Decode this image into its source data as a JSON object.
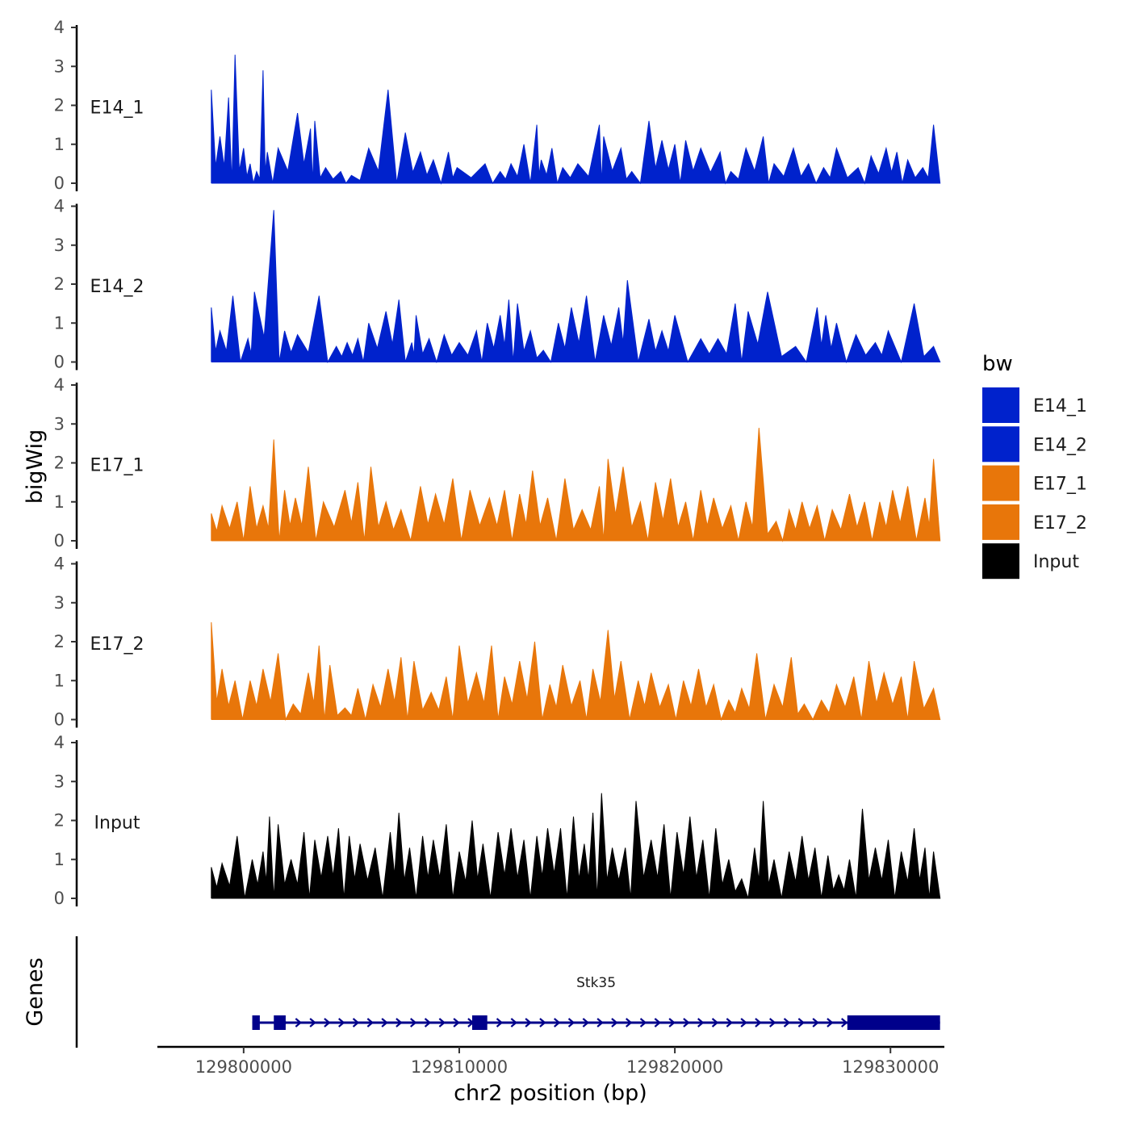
{
  "chart_data": {
    "type": "area",
    "chromosome": "chr2",
    "xlabel": "chr2 position (bp)",
    "ylabel": "bigWig",
    "genes_label": "Genes",
    "xlim": [
      129796000,
      129832500
    ],
    "x_range_data": [
      129798500,
      129832300
    ],
    "x_ticks": [
      129800000,
      129810000,
      129820000,
      129830000
    ],
    "x_tick_labels": [
      "129800000",
      "129810000",
      "129820000",
      "129830000"
    ],
    "ylim": [
      0,
      4
    ],
    "y_ticks": [
      0,
      1,
      2,
      3,
      4
    ],
    "y_tick_labels": [
      "0",
      "1",
      "2",
      "3",
      "4"
    ],
    "legend": {
      "title": "bw",
      "position": "right",
      "items": [
        {
          "label": "E14_1",
          "color": "#0022CC"
        },
        {
          "label": "E14_2",
          "color": "#0022CC"
        },
        {
          "label": "E17_1",
          "color": "#E8760A"
        },
        {
          "label": "E17_2",
          "color": "#E8760A"
        },
        {
          "label": "Input",
          "color": "#000000"
        }
      ]
    },
    "series": [
      {
        "name": "E14_1",
        "color": "#0022CC",
        "peaks": [
          [
            129798500,
            2.4
          ],
          [
            129798900,
            1.2
          ],
          [
            129799300,
            2.2
          ],
          [
            129799600,
            3.3
          ],
          [
            129800000,
            0.9
          ],
          [
            129800300,
            0.5
          ],
          [
            129800600,
            0.3
          ],
          [
            129800900,
            2.9
          ],
          [
            129801100,
            0.8
          ],
          [
            129801600,
            0.9
          ],
          [
            129802500,
            1.8
          ],
          [
            129803100,
            1.4
          ],
          [
            129803300,
            1.6
          ],
          [
            129803800,
            0.4
          ],
          [
            129804500,
            0.3
          ],
          [
            129805000,
            0.2
          ],
          [
            129805800,
            0.9
          ],
          [
            129806700,
            2.4
          ],
          [
            129807500,
            1.3
          ],
          [
            129808200,
            0.8
          ],
          [
            129808800,
            0.6
          ],
          [
            129809500,
            0.8
          ],
          [
            129809900,
            0.4
          ],
          [
            129811200,
            0.5
          ],
          [
            129811900,
            0.3
          ],
          [
            129812400,
            0.5
          ],
          [
            129813000,
            1.0
          ],
          [
            129813600,
            1.5
          ],
          [
            129813800,
            0.6
          ],
          [
            129814300,
            0.9
          ],
          [
            129814800,
            0.4
          ],
          [
            129815500,
            0.5
          ],
          [
            129816500,
            1.5
          ],
          [
            129816700,
            1.2
          ],
          [
            129817500,
            0.9
          ],
          [
            129818000,
            0.3
          ],
          [
            129818800,
            1.6
          ],
          [
            129819400,
            1.1
          ],
          [
            129820000,
            1.0
          ],
          [
            129820500,
            1.1
          ],
          [
            129821200,
            0.9
          ],
          [
            129822100,
            0.8
          ],
          [
            129822600,
            0.3
          ],
          [
            129823300,
            0.9
          ],
          [
            129824100,
            1.2
          ],
          [
            129824600,
            0.5
          ],
          [
            129825500,
            0.9
          ],
          [
            129826200,
            0.5
          ],
          [
            129826900,
            0.4
          ],
          [
            129827500,
            0.9
          ],
          [
            129828500,
            0.4
          ],
          [
            129829100,
            0.7
          ],
          [
            129829800,
            0.9
          ],
          [
            129830300,
            0.8
          ],
          [
            129830800,
            0.6
          ],
          [
            129831500,
            0.4
          ],
          [
            129832000,
            1.5
          ]
        ]
      },
      {
        "name": "E14_2",
        "color": "#0022CC",
        "peaks": [
          [
            129798500,
            1.4
          ],
          [
            129798900,
            0.8
          ],
          [
            129799500,
            1.7
          ],
          [
            129800200,
            0.6
          ],
          [
            129800500,
            1.8
          ],
          [
            129801400,
            3.9
          ],
          [
            129801900,
            0.8
          ],
          [
            129802500,
            0.7
          ],
          [
            129803500,
            1.7
          ],
          [
            129804300,
            0.4
          ],
          [
            129804800,
            0.5
          ],
          [
            129805300,
            0.6
          ],
          [
            129805800,
            1.0
          ],
          [
            129806600,
            1.3
          ],
          [
            129807200,
            1.6
          ],
          [
            129807800,
            0.5
          ],
          [
            129808000,
            1.2
          ],
          [
            129808600,
            0.6
          ],
          [
            129809300,
            0.7
          ],
          [
            129810000,
            0.5
          ],
          [
            129810800,
            0.8
          ],
          [
            129811300,
            1.0
          ],
          [
            129811900,
            1.2
          ],
          [
            129812300,
            1.6
          ],
          [
            129812700,
            1.5
          ],
          [
            129813300,
            0.8
          ],
          [
            129813900,
            0.3
          ],
          [
            129814600,
            1.0
          ],
          [
            129815200,
            1.4
          ],
          [
            129815900,
            1.7
          ],
          [
            129816700,
            1.2
          ],
          [
            129817400,
            1.4
          ],
          [
            129817800,
            2.1
          ],
          [
            129818800,
            1.1
          ],
          [
            129819400,
            0.8
          ],
          [
            129820000,
            1.2
          ],
          [
            129821200,
            0.6
          ],
          [
            129822000,
            0.6
          ],
          [
            129822800,
            1.5
          ],
          [
            129823400,
            1.3
          ],
          [
            129824300,
            1.8
          ],
          [
            129825600,
            0.4
          ],
          [
            129826600,
            1.4
          ],
          [
            129827000,
            1.2
          ],
          [
            129827500,
            1.0
          ],
          [
            129828400,
            0.7
          ],
          [
            129829300,
            0.5
          ],
          [
            129829900,
            0.8
          ],
          [
            129831100,
            1.5
          ],
          [
            129832000,
            0.4
          ]
        ]
      },
      {
        "name": "E17_1",
        "color": "#E8760A",
        "peaks": [
          [
            129798500,
            0.7
          ],
          [
            129799000,
            0.9
          ],
          [
            129799700,
            1.0
          ],
          [
            129800300,
            1.4
          ],
          [
            129800900,
            0.9
          ],
          [
            129801400,
            2.6
          ],
          [
            129801900,
            1.3
          ],
          [
            129802400,
            1.1
          ],
          [
            129803000,
            1.9
          ],
          [
            129803700,
            1.0
          ],
          [
            129804700,
            1.3
          ],
          [
            129805300,
            1.5
          ],
          [
            129805900,
            1.9
          ],
          [
            129806600,
            1.0
          ],
          [
            129807300,
            0.8
          ],
          [
            129808200,
            1.4
          ],
          [
            129808900,
            1.2
          ],
          [
            129809700,
            1.6
          ],
          [
            129810500,
            1.3
          ],
          [
            129811400,
            1.1
          ],
          [
            129812100,
            1.3
          ],
          [
            129812800,
            1.2
          ],
          [
            129813400,
            1.8
          ],
          [
            129814100,
            1.1
          ],
          [
            129814900,
            1.6
          ],
          [
            129815700,
            0.8
          ],
          [
            129816500,
            1.4
          ],
          [
            129816900,
            2.1
          ],
          [
            129817600,
            1.9
          ],
          [
            129818400,
            1.0
          ],
          [
            129819100,
            1.5
          ],
          [
            129819800,
            1.6
          ],
          [
            129820500,
            1.0
          ],
          [
            129821200,
            1.3
          ],
          [
            129821800,
            1.1
          ],
          [
            129822600,
            0.9
          ],
          [
            129823300,
            1.0
          ],
          [
            129823900,
            2.9
          ],
          [
            129824700,
            0.5
          ],
          [
            129825300,
            0.8
          ],
          [
            129825900,
            1.0
          ],
          [
            129826600,
            0.9
          ],
          [
            129827300,
            0.8
          ],
          [
            129828100,
            1.2
          ],
          [
            129828800,
            1.0
          ],
          [
            129829500,
            1.0
          ],
          [
            129830100,
            1.3
          ],
          [
            129830800,
            1.4
          ],
          [
            129831600,
            1.1
          ],
          [
            129832000,
            2.1
          ]
        ]
      },
      {
        "name": "E17_2",
        "color": "#E8760A",
        "peaks": [
          [
            129798500,
            2.5
          ],
          [
            129799000,
            1.3
          ],
          [
            129799600,
            1.0
          ],
          [
            129800300,
            1.0
          ],
          [
            129800900,
            1.3
          ],
          [
            129801600,
            1.7
          ],
          [
            129802300,
            0.4
          ],
          [
            129803000,
            1.2
          ],
          [
            129803500,
            1.9
          ],
          [
            129804000,
            1.4
          ],
          [
            129804700,
            0.3
          ],
          [
            129805300,
            0.8
          ],
          [
            129806000,
            0.9
          ],
          [
            129806700,
            1.3
          ],
          [
            129807300,
            1.6
          ],
          [
            129807900,
            1.5
          ],
          [
            129808700,
            0.7
          ],
          [
            129809400,
            1.1
          ],
          [
            129810000,
            1.9
          ],
          [
            129810800,
            1.2
          ],
          [
            129811500,
            1.9
          ],
          [
            129812100,
            1.1
          ],
          [
            129812800,
            1.5
          ],
          [
            129813500,
            2.0
          ],
          [
            129814200,
            0.9
          ],
          [
            129814800,
            1.4
          ],
          [
            129815600,
            1.0
          ],
          [
            129816200,
            1.3
          ],
          [
            129816900,
            2.3
          ],
          [
            129817500,
            1.5
          ],
          [
            129818300,
            1.0
          ],
          [
            129818900,
            1.2
          ],
          [
            129819700,
            0.9
          ],
          [
            129820400,
            1.0
          ],
          [
            129821100,
            1.3
          ],
          [
            129821800,
            0.9
          ],
          [
            129822500,
            0.5
          ],
          [
            129823100,
            0.8
          ],
          [
            129823800,
            1.7
          ],
          [
            129824600,
            0.9
          ],
          [
            129825400,
            1.6
          ],
          [
            129826000,
            0.4
          ],
          [
            129826800,
            0.5
          ],
          [
            129827500,
            0.9
          ],
          [
            129828300,
            1.1
          ],
          [
            129829000,
            1.5
          ],
          [
            129829700,
            1.2
          ],
          [
            129830500,
            1.1
          ],
          [
            129831100,
            1.5
          ],
          [
            129832000,
            0.8
          ]
        ]
      },
      {
        "name": "Input",
        "color": "#000000",
        "peaks": [
          [
            129798500,
            0.8
          ],
          [
            129799000,
            0.9
          ],
          [
            129799700,
            1.6
          ],
          [
            129800400,
            1.0
          ],
          [
            129800900,
            1.2
          ],
          [
            129801200,
            2.1
          ],
          [
            129801600,
            1.9
          ],
          [
            129802200,
            1.0
          ],
          [
            129802800,
            1.7
          ],
          [
            129803300,
            1.5
          ],
          [
            129803900,
            1.6
          ],
          [
            129804400,
            1.8
          ],
          [
            129804900,
            1.6
          ],
          [
            129805400,
            1.4
          ],
          [
            129806100,
            1.3
          ],
          [
            129806800,
            1.7
          ],
          [
            129807200,
            2.2
          ],
          [
            129807700,
            1.3
          ],
          [
            129808300,
            1.6
          ],
          [
            129808800,
            1.5
          ],
          [
            129809400,
            1.9
          ],
          [
            129810000,
            1.2
          ],
          [
            129810600,
            2.0
          ],
          [
            129811100,
            1.4
          ],
          [
            129811800,
            1.7
          ],
          [
            129812400,
            1.8
          ],
          [
            129813000,
            1.5
          ],
          [
            129813600,
            1.6
          ],
          [
            129814100,
            1.8
          ],
          [
            129814700,
            1.8
          ],
          [
            129815300,
            2.1
          ],
          [
            129815800,
            1.4
          ],
          [
            129816200,
            2.2
          ],
          [
            129816600,
            2.7
          ],
          [
            129817100,
            1.3
          ],
          [
            129817700,
            1.3
          ],
          [
            129818200,
            2.5
          ],
          [
            129818900,
            1.5
          ],
          [
            129819500,
            1.9
          ],
          [
            129820100,
            1.7
          ],
          [
            129820700,
            2.1
          ],
          [
            129821300,
            1.5
          ],
          [
            129821900,
            1.8
          ],
          [
            129822500,
            1.0
          ],
          [
            129823100,
            0.5
          ],
          [
            129823700,
            1.3
          ],
          [
            129824100,
            2.5
          ],
          [
            129824600,
            1.0
          ],
          [
            129825300,
            1.2
          ],
          [
            129825900,
            1.6
          ],
          [
            129826500,
            1.3
          ],
          [
            129827100,
            1.1
          ],
          [
            129827600,
            0.6
          ],
          [
            129828100,
            1.0
          ],
          [
            129828700,
            2.3
          ],
          [
            129829300,
            1.3
          ],
          [
            129829900,
            1.5
          ],
          [
            129830500,
            1.2
          ],
          [
            129831100,
            1.8
          ],
          [
            129831600,
            1.3
          ],
          [
            129832000,
            1.2
          ]
        ]
      }
    ],
    "gene_track": {
      "name": "Stk35",
      "color": "#00008B",
      "strand": "+",
      "start": 129800400,
      "end": 129832300,
      "exons": [
        [
          129800400,
          129800750
        ],
        [
          129801400,
          129801950
        ],
        [
          129810600,
          129811300
        ],
        [
          129828000,
          129832300
        ]
      ]
    }
  }
}
